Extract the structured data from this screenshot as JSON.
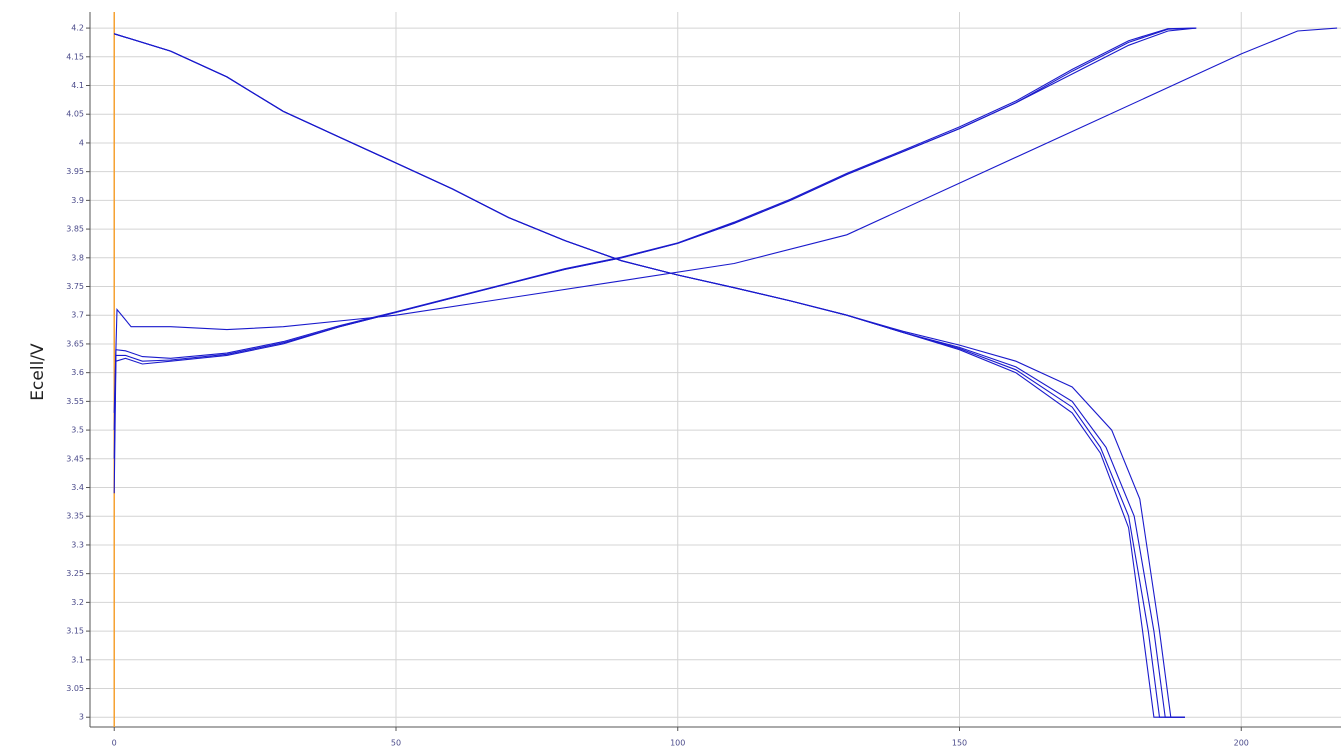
{
  "chart_data": {
    "type": "line",
    "y_label": "Ecell/V",
    "xlim": [
      -4.3,
      217.7
    ],
    "ylim": [
      2.983,
      4.228
    ],
    "xticks": [
      0,
      50,
      100,
      150,
      200
    ],
    "yticks": [
      3,
      3.05,
      3.1,
      3.15,
      3.2,
      3.25,
      3.3,
      3.35,
      3.4,
      3.45,
      3.5,
      3.55,
      3.6,
      3.65,
      3.7,
      3.75,
      3.8,
      3.85,
      3.9,
      3.95,
      4,
      4.05,
      4.1,
      4.15,
      4.2
    ],
    "grid": true,
    "cursor": {
      "x": 0,
      "color": "#f5a030"
    },
    "series": [
      {
        "color": "#1a1acc",
        "x": [
          0,
          10,
          20,
          30,
          40,
          50,
          60,
          70,
          80,
          90,
          100,
          110,
          120,
          130,
          140,
          150,
          160,
          170,
          175,
          180,
          182.5,
          184.5,
          190
        ],
        "values": [
          4.19,
          4.16,
          4.115,
          4.055,
          4.01,
          3.965,
          3.92,
          3.87,
          3.83,
          3.795,
          3.77,
          3.748,
          3.725,
          3.7,
          3.67,
          3.64,
          3.6,
          3.53,
          3.46,
          3.33,
          3.15,
          3,
          3
        ]
      },
      {
        "color": "#1a1acc",
        "x": [
          0,
          10,
          20,
          30,
          40,
          50,
          60,
          70,
          80,
          90,
          100,
          110,
          120,
          130,
          140,
          150,
          160,
          170,
          175,
          180,
          183.5,
          185.5,
          190
        ],
        "values": [
          4.19,
          4.16,
          4.115,
          4.055,
          4.01,
          3.965,
          3.92,
          3.87,
          3.83,
          3.795,
          3.77,
          3.748,
          3.725,
          3.7,
          3.67,
          3.642,
          3.605,
          3.54,
          3.47,
          3.35,
          3.15,
          3,
          3
        ]
      },
      {
        "color": "#1a1acc",
        "x": [
          0,
          10,
          20,
          30,
          40,
          50,
          60,
          70,
          80,
          90,
          100,
          110,
          120,
          130,
          140,
          150,
          160,
          170,
          176,
          181,
          184.5,
          186.5,
          190
        ],
        "values": [
          4.19,
          4.16,
          4.115,
          4.055,
          4.01,
          3.965,
          3.92,
          3.87,
          3.83,
          3.795,
          3.77,
          3.748,
          3.725,
          3.7,
          3.67,
          3.644,
          3.61,
          3.55,
          3.47,
          3.35,
          3.15,
          3,
          3
        ]
      },
      {
        "color": "#1a1acc",
        "x": [
          0,
          10,
          20,
          30,
          40,
          50,
          60,
          70,
          80,
          90,
          100,
          110,
          120,
          130,
          140,
          150,
          160,
          170,
          177,
          182,
          185.5,
          187.5,
          190
        ],
        "values": [
          4.19,
          4.16,
          4.115,
          4.055,
          4.01,
          3.965,
          3.92,
          3.87,
          3.83,
          3.795,
          3.77,
          3.748,
          3.725,
          3.7,
          3.672,
          3.648,
          3.62,
          3.575,
          3.5,
          3.38,
          3.15,
          3,
          3
        ]
      },
      {
        "color": "#1a1acc",
        "x": [
          0,
          0.3,
          2,
          5,
          10,
          20,
          30,
          40,
          50,
          60,
          70,
          80,
          90,
          100,
          110,
          120,
          130,
          140,
          150,
          160,
          170,
          180,
          187,
          192
        ],
        "values": [
          3.39,
          3.62,
          3.625,
          3.615,
          3.62,
          3.63,
          3.65,
          3.68,
          3.705,
          3.73,
          3.755,
          3.78,
          3.8,
          3.825,
          3.86,
          3.9,
          3.945,
          3.985,
          4.025,
          4.07,
          4.12,
          4.17,
          4.195,
          4.2
        ]
      },
      {
        "color": "#1a1acc",
        "x": [
          0,
          0.3,
          2,
          5,
          10,
          20,
          30,
          40,
          50,
          60,
          70,
          80,
          90,
          100,
          110,
          120,
          130,
          140,
          150,
          160,
          170,
          180,
          187,
          192
        ],
        "values": [
          3.45,
          3.63,
          3.63,
          3.62,
          3.622,
          3.632,
          3.652,
          3.68,
          3.705,
          3.73,
          3.755,
          3.78,
          3.8,
          3.825,
          3.86,
          3.9,
          3.945,
          3.985,
          4.025,
          4.07,
          4.125,
          4.175,
          4.198,
          4.2
        ]
      },
      {
        "color": "#1a1acc",
        "x": [
          0,
          0.3,
          2,
          5,
          10,
          20,
          30,
          40,
          50,
          60,
          70,
          80,
          90,
          100,
          110,
          120,
          130,
          140,
          150,
          160,
          170,
          180,
          187,
          192
        ],
        "values": [
          3.5,
          3.64,
          3.638,
          3.628,
          3.625,
          3.634,
          3.654,
          3.682,
          3.706,
          3.731,
          3.756,
          3.781,
          3.801,
          3.826,
          3.862,
          3.902,
          3.947,
          3.987,
          4.028,
          4.073,
          4.128,
          4.178,
          4.199,
          4.2
        ]
      },
      {
        "color": "#1a1acc",
        "x": [
          0,
          0.5,
          3,
          10,
          20,
          30,
          50,
          70,
          90,
          110,
          130,
          150,
          170,
          190,
          200,
          210,
          217
        ],
        "values": [
          3.53,
          3.71,
          3.68,
          3.68,
          3.675,
          3.68,
          3.7,
          3.73,
          3.76,
          3.79,
          3.84,
          3.93,
          4.02,
          4.11,
          4.155,
          4.195,
          4.2
        ]
      }
    ]
  }
}
